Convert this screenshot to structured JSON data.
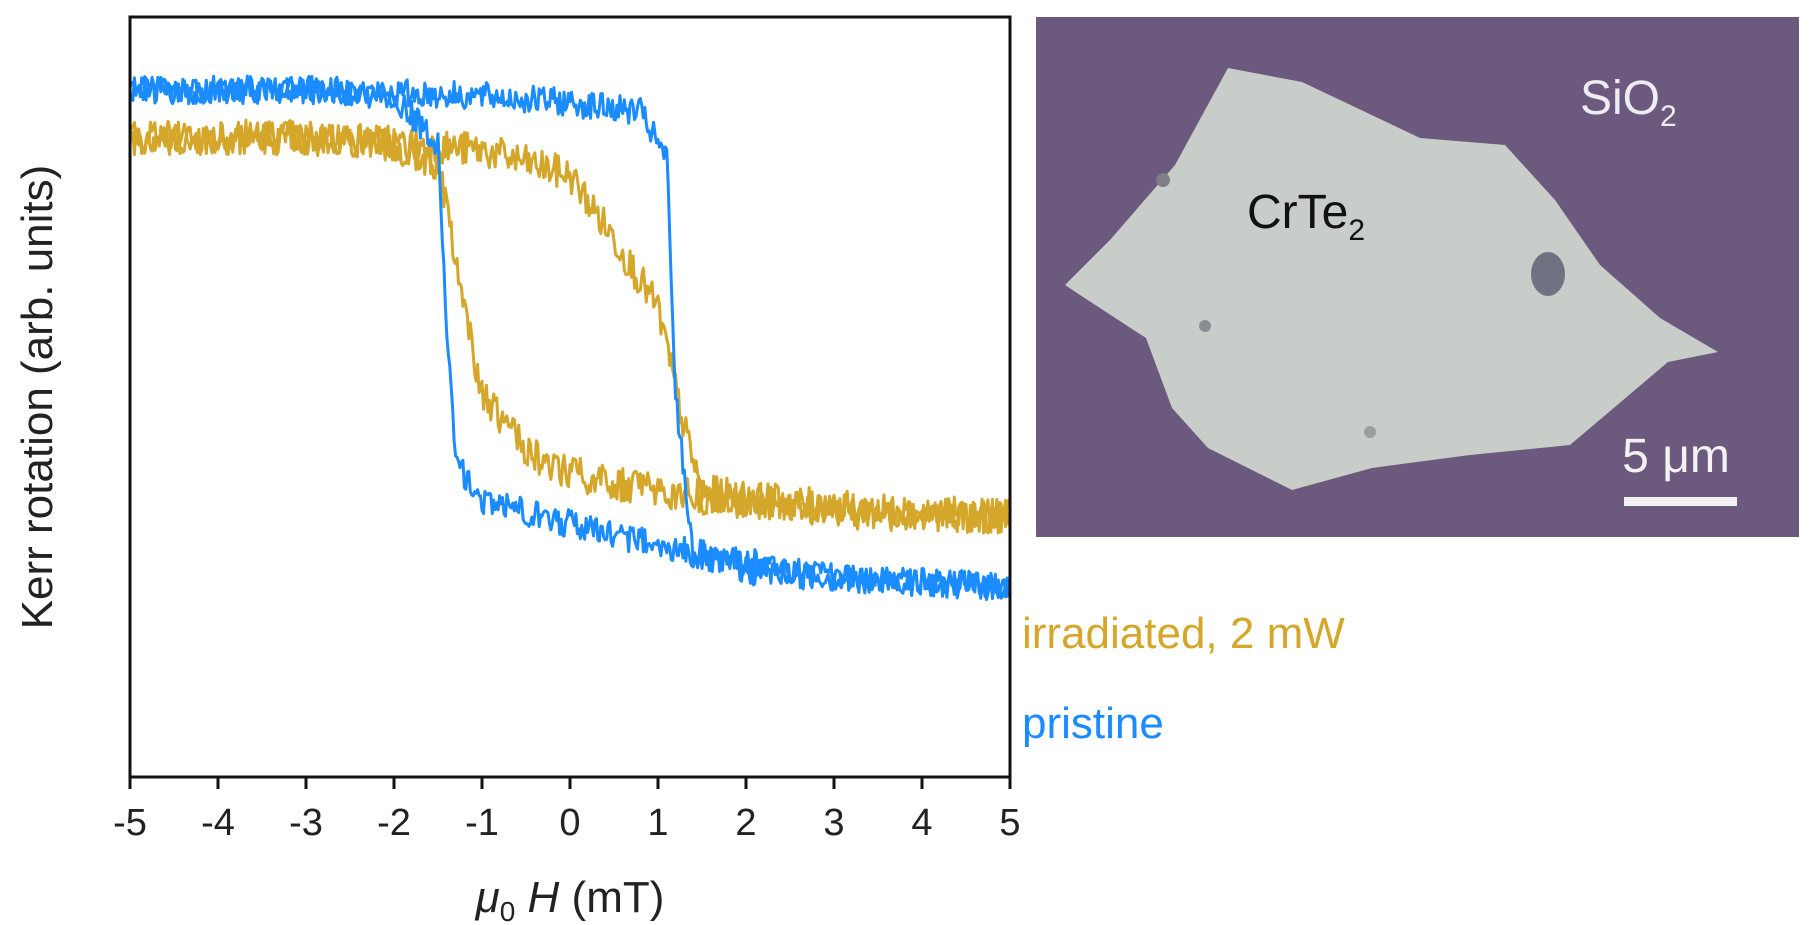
{
  "chart_data": {
    "type": "line",
    "title": "",
    "xlabel": "(mT)",
    "xlabel_symbol": "μ",
    "xlabel_subscript": "0",
    "xlabel_var": "H",
    "ylabel": "Kerr rotation (arb. units)",
    "xlim": [
      -5,
      5
    ],
    "ylim": [
      -1.2,
      1.2
    ],
    "x_ticks": [
      "-5",
      "-4",
      "-3",
      "-2",
      "-1",
      "0",
      "1",
      "2",
      "3",
      "4",
      "5"
    ],
    "grid": false,
    "series": [
      {
        "name": "irradiated, 2 mW",
        "color": "#D4A62A",
        "sweep_down": {
          "x": [
            5,
            3,
            1,
            0,
            -0.5,
            -1.0,
            -1.2,
            -1.5,
            -2,
            -3,
            -5
          ],
          "y": [
            -0.38,
            -0.36,
            -0.3,
            -0.24,
            -0.17,
            0.0,
            0.3,
            0.73,
            0.8,
            0.82,
            0.82
          ]
        },
        "sweep_up": {
          "x": [
            -5,
            -3,
            -1,
            0,
            0.5,
            1.0,
            1.3,
            1.5,
            3,
            5
          ],
          "y": [
            0.82,
            0.82,
            0.78,
            0.7,
            0.5,
            0.28,
            -0.1,
            -0.3,
            -0.35,
            -0.38
          ]
        },
        "noise": 0.05
      },
      {
        "name": "pristine",
        "color": "#1A8CFF",
        "sweep_down": {
          "x": [
            5,
            3,
            1,
            0,
            -1,
            -1.3,
            -1.4,
            -1.5,
            -2,
            -3,
            -5
          ],
          "y": [
            -0.6,
            -0.57,
            -0.47,
            -0.4,
            -0.33,
            -0.2,
            0.2,
            0.8,
            0.95,
            0.97,
            0.97
          ]
        },
        "sweep_up": {
          "x": [
            -5,
            -3,
            -1,
            0,
            0.8,
            1.1,
            1.2,
            1.4,
            2,
            3,
            5
          ],
          "y": [
            0.97,
            0.97,
            0.95,
            0.93,
            0.9,
            0.75,
            0.0,
            -0.5,
            -0.55,
            -0.57,
            -0.6
          ]
        },
        "noise": 0.04
      }
    ]
  },
  "micrograph": {
    "substrate_label": "SiO",
    "substrate_subscript": "2",
    "flake_label": "CrTe",
    "flake_subscript": "2",
    "scale_bar_label": "5 μm",
    "background_color": "#6B5A7E",
    "flake_color": "#C9CDC9"
  }
}
